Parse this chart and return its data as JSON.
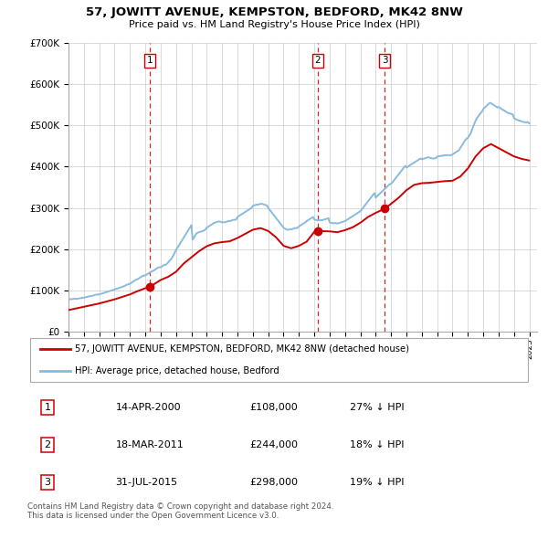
{
  "title": "57, JOWITT AVENUE, KEMPSTON, BEDFORD, MK42 8NW",
  "subtitle": "Price paid vs. HM Land Registry's House Price Index (HPI)",
  "ylim": [
    0,
    700000
  ],
  "yticks": [
    0,
    100000,
    200000,
    300000,
    400000,
    500000,
    600000,
    700000
  ],
  "ytick_labels": [
    "£0",
    "£100K",
    "£200K",
    "£300K",
    "£400K",
    "£500K",
    "£600K",
    "£700K"
  ],
  "background_color": "#ffffff",
  "grid_color": "#cccccc",
  "sale_color": "#cc0000",
  "hpi_color": "#88bbdd",
  "vline_color": "#cc0000",
  "purchases": [
    {
      "label": "1",
      "date_x": 2000.28,
      "price": 108000,
      "date_str": "14-APR-2000",
      "amount": "£108,000",
      "pct": "27% ↓ HPI"
    },
    {
      "label": "2",
      "date_x": 2011.21,
      "price": 244000,
      "date_str": "18-MAR-2011",
      "amount": "£244,000",
      "pct": "18% ↓ HPI"
    },
    {
      "label": "3",
      "date_x": 2015.58,
      "price": 298000,
      "date_str": "31-JUL-2015",
      "amount": "£298,000",
      "pct": "19% ↓ HPI"
    }
  ],
  "legend_sale_label": "57, JOWITT AVENUE, KEMPSTON, BEDFORD, MK42 8NW (detached house)",
  "legend_hpi_label": "HPI: Average price, detached house, Bedford",
  "footnote": "Contains HM Land Registry data © Crown copyright and database right 2024.\nThis data is licensed under the Open Government Licence v3.0.",
  "hpi_x": [
    1995.0,
    1995.08,
    1995.17,
    1995.25,
    1995.33,
    1995.42,
    1995.5,
    1995.58,
    1995.67,
    1995.75,
    1995.83,
    1995.92,
    1996.0,
    1996.08,
    1996.17,
    1996.25,
    1996.33,
    1996.42,
    1996.5,
    1996.58,
    1996.67,
    1996.75,
    1996.83,
    1996.92,
    1997.0,
    1997.08,
    1997.17,
    1997.25,
    1997.33,
    1997.42,
    1997.5,
    1997.58,
    1997.67,
    1997.75,
    1997.83,
    1997.92,
    1998.0,
    1998.08,
    1998.17,
    1998.25,
    1998.33,
    1998.42,
    1998.5,
    1998.58,
    1998.67,
    1998.75,
    1998.83,
    1998.92,
    1999.0,
    1999.08,
    1999.17,
    1999.25,
    1999.33,
    1999.42,
    1999.5,
    1999.58,
    1999.67,
    1999.75,
    1999.83,
    1999.92,
    2000.0,
    2000.08,
    2000.17,
    2000.25,
    2000.33,
    2000.42,
    2000.5,
    2000.58,
    2000.67,
    2000.75,
    2000.83,
    2000.92,
    2001.0,
    2001.08,
    2001.17,
    2001.25,
    2001.33,
    2001.42,
    2001.5,
    2001.58,
    2001.67,
    2001.75,
    2001.83,
    2001.92,
    2002.0,
    2002.08,
    2002.17,
    2002.25,
    2002.33,
    2002.42,
    2002.5,
    2002.58,
    2002.67,
    2002.75,
    2002.83,
    2002.92,
    2003.0,
    2003.08,
    2003.17,
    2003.25,
    2003.33,
    2003.42,
    2003.5,
    2003.58,
    2003.67,
    2003.75,
    2003.83,
    2003.92,
    2004.0,
    2004.08,
    2004.17,
    2004.25,
    2004.33,
    2004.42,
    2004.5,
    2004.58,
    2004.67,
    2004.75,
    2004.83,
    2004.92,
    2005.0,
    2005.08,
    2005.17,
    2005.25,
    2005.33,
    2005.42,
    2005.5,
    2005.58,
    2005.67,
    2005.75,
    2005.83,
    2005.92,
    2006.0,
    2006.08,
    2006.17,
    2006.25,
    2006.33,
    2006.42,
    2006.5,
    2006.58,
    2006.67,
    2006.75,
    2006.83,
    2006.92,
    2007.0,
    2007.08,
    2007.17,
    2007.25,
    2007.33,
    2007.42,
    2007.5,
    2007.58,
    2007.67,
    2007.75,
    2007.83,
    2007.92,
    2008.0,
    2008.08,
    2008.17,
    2008.25,
    2008.33,
    2008.42,
    2008.5,
    2008.58,
    2008.67,
    2008.75,
    2008.83,
    2008.92,
    2009.0,
    2009.08,
    2009.17,
    2009.25,
    2009.33,
    2009.42,
    2009.5,
    2009.58,
    2009.67,
    2009.75,
    2009.83,
    2009.92,
    2010.0,
    2010.08,
    2010.17,
    2010.25,
    2010.33,
    2010.42,
    2010.5,
    2010.58,
    2010.67,
    2010.75,
    2010.83,
    2010.92,
    2011.0,
    2011.08,
    2011.17,
    2011.25,
    2011.33,
    2011.42,
    2011.5,
    2011.58,
    2011.67,
    2011.75,
    2011.83,
    2011.92,
    2012.0,
    2012.08,
    2012.17,
    2012.25,
    2012.33,
    2012.42,
    2012.5,
    2012.58,
    2012.67,
    2012.75,
    2012.83,
    2012.92,
    2013.0,
    2013.08,
    2013.17,
    2013.25,
    2013.33,
    2013.42,
    2013.5,
    2013.58,
    2013.67,
    2013.75,
    2013.83,
    2013.92,
    2014.0,
    2014.08,
    2014.17,
    2014.25,
    2014.33,
    2014.42,
    2014.5,
    2014.58,
    2014.67,
    2014.75,
    2014.83,
    2014.92,
    2015.0,
    2015.08,
    2015.17,
    2015.25,
    2015.33,
    2015.42,
    2015.5,
    2015.58,
    2015.67,
    2015.75,
    2015.83,
    2015.92,
    2016.0,
    2016.08,
    2016.17,
    2016.25,
    2016.33,
    2016.42,
    2016.5,
    2016.58,
    2016.67,
    2016.75,
    2016.83,
    2016.92,
    2017.0,
    2017.08,
    2017.17,
    2017.25,
    2017.33,
    2017.42,
    2017.5,
    2017.58,
    2017.67,
    2017.75,
    2017.83,
    2017.92,
    2018.0,
    2018.08,
    2018.17,
    2018.25,
    2018.33,
    2018.42,
    2018.5,
    2018.58,
    2018.67,
    2018.75,
    2018.83,
    2018.92,
    2019.0,
    2019.08,
    2019.17,
    2019.25,
    2019.33,
    2019.42,
    2019.5,
    2019.58,
    2019.67,
    2019.75,
    2019.83,
    2019.92,
    2020.0,
    2020.08,
    2020.17,
    2020.25,
    2020.33,
    2020.42,
    2020.5,
    2020.58,
    2020.67,
    2020.75,
    2020.83,
    2020.92,
    2021.0,
    2021.08,
    2021.17,
    2021.25,
    2021.33,
    2021.42,
    2021.5,
    2021.58,
    2021.67,
    2021.75,
    2021.83,
    2021.92,
    2022.0,
    2022.08,
    2022.17,
    2022.25,
    2022.33,
    2022.42,
    2022.5,
    2022.58,
    2022.67,
    2022.75,
    2022.83,
    2022.92,
    2023.0,
    2023.08,
    2023.17,
    2023.25,
    2023.33,
    2023.42,
    2023.5,
    2023.58,
    2023.67,
    2023.75,
    2023.83,
    2023.92,
    2024.0,
    2024.08,
    2024.17,
    2024.25,
    2024.33,
    2024.42,
    2024.5,
    2024.58,
    2024.67,
    2024.75,
    2024.83,
    2024.92,
    2025.0
  ],
  "hpi_y": [
    78000,
    78200,
    78500,
    78800,
    79200,
    79600,
    79000,
    79500,
    80000,
    80500,
    81000,
    81500,
    82000,
    82800,
    83600,
    84400,
    85200,
    86000,
    86000,
    87000,
    88000,
    89000,
    89500,
    90000,
    90000,
    91000,
    92000,
    93000,
    94000,
    95000,
    96000,
    97000,
    98000,
    99000,
    100000,
    101000,
    102000,
    103000,
    104000,
    105000,
    106000,
    107000,
    108000,
    109500,
    111000,
    112500,
    114000,
    115000,
    116000,
    118000,
    120000,
    122000,
    124000,
    126000,
    127000,
    129000,
    131000,
    133000,
    135000,
    136000,
    136000,
    138000,
    140000,
    142000,
    144000,
    146000,
    147000,
    149000,
    151000,
    153000,
    155000,
    156000,
    156000,
    158000,
    160000,
    162000,
    162000,
    165000,
    168000,
    172000,
    175000,
    180000,
    185000,
    192000,
    198000,
    203000,
    208000,
    213000,
    218000,
    223000,
    228000,
    233000,
    238000,
    243000,
    248000,
    253000,
    258000,
    223000,
    228000,
    233000,
    238000,
    240000,
    241000,
    242000,
    243000,
    244000,
    245000,
    248000,
    252000,
    254000,
    256000,
    258000,
    260000,
    262000,
    264000,
    265000,
    266000,
    267000,
    267000,
    266000,
    265000,
    265000,
    265000,
    266000,
    267000,
    268000,
    268000,
    269000,
    270000,
    271000,
    271000,
    272000,
    278000,
    280000,
    282000,
    284000,
    286000,
    288000,
    290000,
    292000,
    294000,
    296000,
    298000,
    300000,
    305000,
    306000,
    307000,
    308000,
    308000,
    309000,
    310000,
    310000,
    309000,
    308000,
    307000,
    306000,
    300000,
    296000,
    292000,
    288000,
    284000,
    280000,
    276000,
    272000,
    268000,
    264000,
    260000,
    256000,
    252000,
    250000,
    248000,
    247000,
    247000,
    248000,
    248000,
    249000,
    250000,
    251000,
    251000,
    252000,
    255000,
    257000,
    259000,
    261000,
    263000,
    265000,
    268000,
    270000,
    272000,
    274000,
    276000,
    278000,
    272000,
    271000,
    270000,
    270000,
    270000,
    270000,
    270000,
    271000,
    272000,
    273000,
    274000,
    275000,
    265000,
    264000,
    263000,
    263000,
    263000,
    263000,
    262000,
    263000,
    264000,
    265000,
    266000,
    267000,
    268000,
    270000,
    272000,
    274000,
    276000,
    278000,
    280000,
    282000,
    284000,
    286000,
    288000,
    290000,
    292000,
    296000,
    300000,
    304000,
    308000,
    312000,
    316000,
    320000,
    324000,
    328000,
    332000,
    336000,
    325000,
    328000,
    331000,
    334000,
    337000,
    340000,
    343000,
    346000,
    349000,
    352000,
    355000,
    358000,
    358000,
    362000,
    366000,
    370000,
    374000,
    378000,
    382000,
    386000,
    390000,
    394000,
    398000,
    402000,
    398000,
    400000,
    402000,
    404000,
    406000,
    408000,
    410000,
    412000,
    414000,
    416000,
    418000,
    420000,
    418000,
    419000,
    420000,
    421000,
    422000,
    423000,
    422000,
    421000,
    420000,
    420000,
    420000,
    421000,
    425000,
    425000,
    426000,
    426000,
    427000,
    427000,
    428000,
    428000,
    428000,
    428000,
    428000,
    428000,
    430000,
    432000,
    434000,
    436000,
    438000,
    440000,
    445000,
    450000,
    455000,
    460000,
    465000,
    468000,
    470000,
    475000,
    480000,
    488000,
    496000,
    504000,
    512000,
    518000,
    522000,
    526000,
    530000,
    534000,
    540000,
    543000,
    546000,
    549000,
    552000,
    555000,
    554000,
    552000,
    550000,
    548000,
    546000,
    544000,
    545000,
    543000,
    541000,
    539000,
    537000,
    535000,
    533000,
    531000,
    530000,
    529000,
    528000,
    527000,
    518000,
    516000,
    514000,
    513000,
    512000,
    511000,
    510000,
    509000,
    508000,
    508000,
    508000,
    508000,
    505000
  ],
  "sale_x": [
    1995.0,
    1995.5,
    1996.0,
    1996.5,
    1997.0,
    1997.5,
    1998.0,
    1998.5,
    1999.0,
    1999.5,
    2000.0,
    2000.28,
    2001.0,
    2001.5,
    2002.0,
    2002.5,
    2003.0,
    2003.5,
    2004.0,
    2004.5,
    2005.0,
    2005.5,
    2006.0,
    2006.5,
    2007.0,
    2007.5,
    2008.0,
    2008.5,
    2009.0,
    2009.5,
    2010.0,
    2010.5,
    2011.0,
    2011.21,
    2012.0,
    2012.5,
    2013.0,
    2013.5,
    2014.0,
    2014.5,
    2015.0,
    2015.58,
    2016.0,
    2016.5,
    2017.0,
    2017.5,
    2018.0,
    2018.5,
    2019.0,
    2019.5,
    2020.0,
    2020.5,
    2021.0,
    2021.5,
    2022.0,
    2022.5,
    2023.0,
    2023.5,
    2024.0,
    2024.5,
    2025.0
  ],
  "sale_y": [
    52000,
    56000,
    60000,
    64000,
    68000,
    73000,
    78000,
    84000,
    90000,
    98000,
    105000,
    108000,
    125000,
    133000,
    145000,
    165000,
    180000,
    195000,
    207000,
    214000,
    217000,
    219000,
    227000,
    237000,
    247000,
    251000,
    244000,
    229000,
    208000,
    202000,
    208000,
    218000,
    242000,
    244000,
    243000,
    241000,
    246000,
    253000,
    264000,
    278000,
    288000,
    298000,
    310000,
    325000,
    343000,
    356000,
    360000,
    361000,
    363000,
    365000,
    366000,
    376000,
    396000,
    425000,
    445000,
    455000,
    445000,
    435000,
    425000,
    419000,
    415000
  ],
  "xlim": [
    1995.0,
    2025.5
  ],
  "xticks": [
    1995,
    1996,
    1997,
    1998,
    1999,
    2000,
    2001,
    2002,
    2003,
    2004,
    2005,
    2006,
    2007,
    2008,
    2009,
    2010,
    2011,
    2012,
    2013,
    2014,
    2015,
    2016,
    2017,
    2018,
    2019,
    2020,
    2021,
    2022,
    2023,
    2024,
    2025
  ]
}
